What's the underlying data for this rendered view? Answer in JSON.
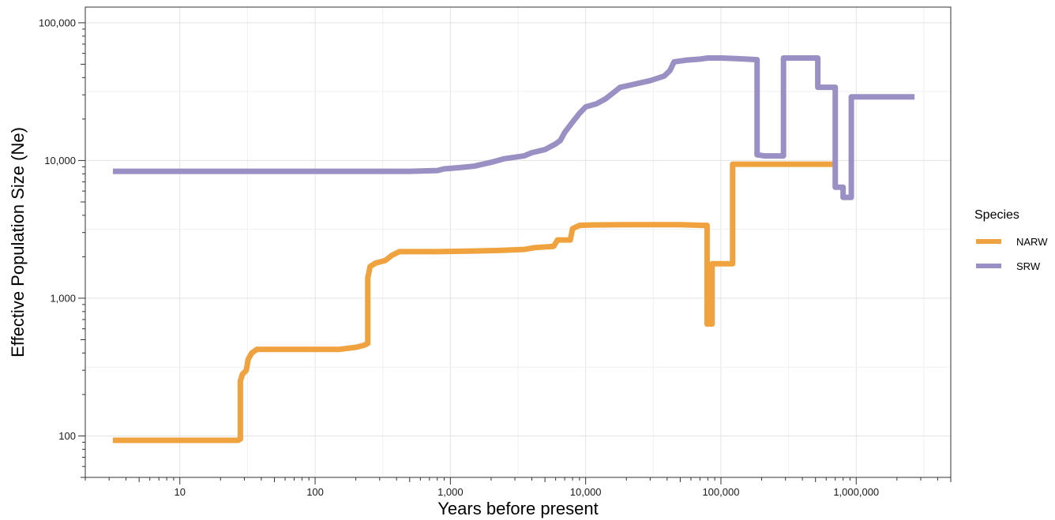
{
  "chart_data": {
    "type": "line",
    "title": "",
    "xlabel": "Years before present",
    "ylabel": "Effective Population Size (Ne)",
    "xscale": "log",
    "yscale": "log",
    "xlim": [
      2,
      5000000
    ],
    "ylim": [
      50,
      130000
    ],
    "grid": true,
    "legend_title": "Species",
    "legend_position": "right",
    "x_ticks": [
      {
        "value": 10,
        "label": "10"
      },
      {
        "value": 100,
        "label": "100"
      },
      {
        "value": 1000,
        "label": "1,000"
      },
      {
        "value": 10000,
        "label": "10,000"
      },
      {
        "value": 100000,
        "label": "100,000"
      },
      {
        "value": 1000000,
        "label": "1,000,000"
      }
    ],
    "y_ticks": [
      {
        "value": 100,
        "label": "100"
      },
      {
        "value": 1000,
        "label": "1,000"
      },
      {
        "value": 10000,
        "label": "10,000"
      },
      {
        "value": 100000,
        "label": "100,000"
      }
    ],
    "series": [
      {
        "name": "NARW",
        "color": "#f0a23e",
        "points": [
          [
            3.2,
            93
          ],
          [
            27,
            93
          ],
          [
            28,
            95
          ],
          [
            28,
            250
          ],
          [
            29,
            280
          ],
          [
            31,
            300
          ],
          [
            32,
            360
          ],
          [
            34,
            400
          ],
          [
            37,
            425
          ],
          [
            60,
            425
          ],
          [
            150,
            425
          ],
          [
            200,
            440
          ],
          [
            230,
            455
          ],
          [
            245,
            470
          ],
          [
            245,
            1400
          ],
          [
            255,
            1700
          ],
          [
            280,
            1800
          ],
          [
            330,
            1880
          ],
          [
            370,
            2050
          ],
          [
            420,
            2180
          ],
          [
            800,
            2180
          ],
          [
            1500,
            2200
          ],
          [
            2500,
            2230
          ],
          [
            3500,
            2260
          ],
          [
            4200,
            2330
          ],
          [
            5800,
            2380
          ],
          [
            6200,
            2650
          ],
          [
            7700,
            2650
          ],
          [
            8000,
            3200
          ],
          [
            9000,
            3380
          ],
          [
            11000,
            3400
          ],
          [
            20000,
            3420
          ],
          [
            50000,
            3420
          ],
          [
            75000,
            3380
          ],
          [
            79000,
            3380
          ],
          [
            79000,
            650
          ],
          [
            86000,
            650
          ],
          [
            86000,
            1780
          ],
          [
            122000,
            1780
          ],
          [
            122000,
            9400
          ],
          [
            700000,
            9400
          ]
        ]
      },
      {
        "name": "SRW",
        "color": "#9a90c4",
        "points": [
          [
            3.2,
            8350
          ],
          [
            500,
            8350
          ],
          [
            800,
            8450
          ],
          [
            900,
            8700
          ],
          [
            1200,
            8900
          ],
          [
            1500,
            9100
          ],
          [
            2000,
            9700
          ],
          [
            2500,
            10300
          ],
          [
            3500,
            10800
          ],
          [
            4000,
            11400
          ],
          [
            5000,
            12000
          ],
          [
            6000,
            13200
          ],
          [
            6500,
            14000
          ],
          [
            7000,
            16000
          ],
          [
            8000,
            19000
          ],
          [
            9000,
            22000
          ],
          [
            10000,
            24500
          ],
          [
            12000,
            25800
          ],
          [
            14000,
            28000
          ],
          [
            16000,
            31000
          ],
          [
            18000,
            34000
          ],
          [
            22000,
            35500
          ],
          [
            30000,
            38000
          ],
          [
            38000,
            41000
          ],
          [
            42000,
            45000
          ],
          [
            45000,
            52000
          ],
          [
            55000,
            53500
          ],
          [
            70000,
            54500
          ],
          [
            80000,
            55500
          ],
          [
            100000,
            55500
          ],
          [
            130000,
            55000
          ],
          [
            185000,
            54000
          ],
          [
            185000,
            11000
          ],
          [
            210000,
            10800
          ],
          [
            290000,
            10800
          ],
          [
            290000,
            55500
          ],
          [
            520000,
            55500
          ],
          [
            520000,
            34000
          ],
          [
            700000,
            34000
          ],
          [
            700000,
            6400
          ],
          [
            800000,
            6400
          ],
          [
            800000,
            5400
          ],
          [
            920000,
            5400
          ],
          [
            920000,
            29000
          ],
          [
            2700000,
            29000
          ]
        ]
      }
    ]
  }
}
